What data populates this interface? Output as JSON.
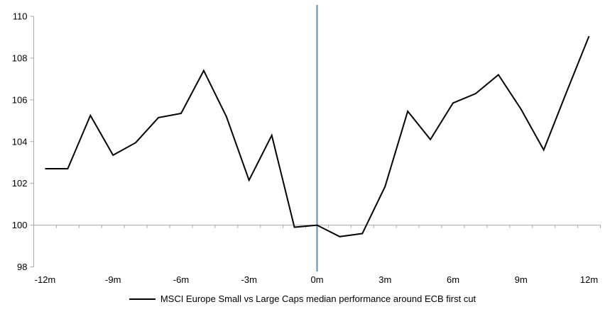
{
  "chart_data": {
    "type": "line",
    "title": "",
    "xlabel": "",
    "ylabel": "",
    "categories": [
      -12,
      -11,
      -10,
      -9,
      -8,
      -7,
      -6,
      -5,
      -4,
      -3,
      -2,
      -1,
      0,
      1,
      2,
      3,
      4,
      5,
      6,
      7,
      8,
      9,
      10,
      11,
      12
    ],
    "series": [
      {
        "name": "MSCI Europe Small vs Large Caps median performance around ECB first cut",
        "color": "#000000",
        "values": [
          102.7,
          102.7,
          105.25,
          103.35,
          103.95,
          105.15,
          105.35,
          107.4,
          105.2,
          102.15,
          104.3,
          99.9,
          100.0,
          99.45,
          99.6,
          101.85,
          105.45,
          104.1,
          105.85,
          106.3,
          107.2,
          105.55,
          103.6,
          106.35,
          109.05
        ]
      }
    ],
    "ylim": [
      98,
      110
    ],
    "yticks": [
      98,
      100,
      102,
      104,
      106,
      108,
      110
    ],
    "ytick_labels": [
      "98",
      "100",
      "102",
      "104",
      "106",
      "108",
      "110"
    ],
    "xticks": [
      -12,
      -9,
      -6,
      -3,
      0,
      3,
      6,
      9,
      12
    ],
    "xtick_labels": [
      "-12m",
      "-9m",
      "-6m",
      "-3m",
      "0m",
      "3m",
      "6m",
      "9m",
      "12m"
    ],
    "category_axis_baseline": 100,
    "event_line_x": 0,
    "grid": false,
    "legend_position": "bottom-center",
    "colors": {
      "series_line": "#000000",
      "event_line": "#74A2D2",
      "axis_line": "#a8a8a8",
      "tick_mark": "#a8a8a8",
      "label_text": "#000000",
      "background": "#ffffff"
    }
  },
  "legend": {
    "label": "MSCI Europe Small vs Large Caps median performance around ECB first cut"
  }
}
